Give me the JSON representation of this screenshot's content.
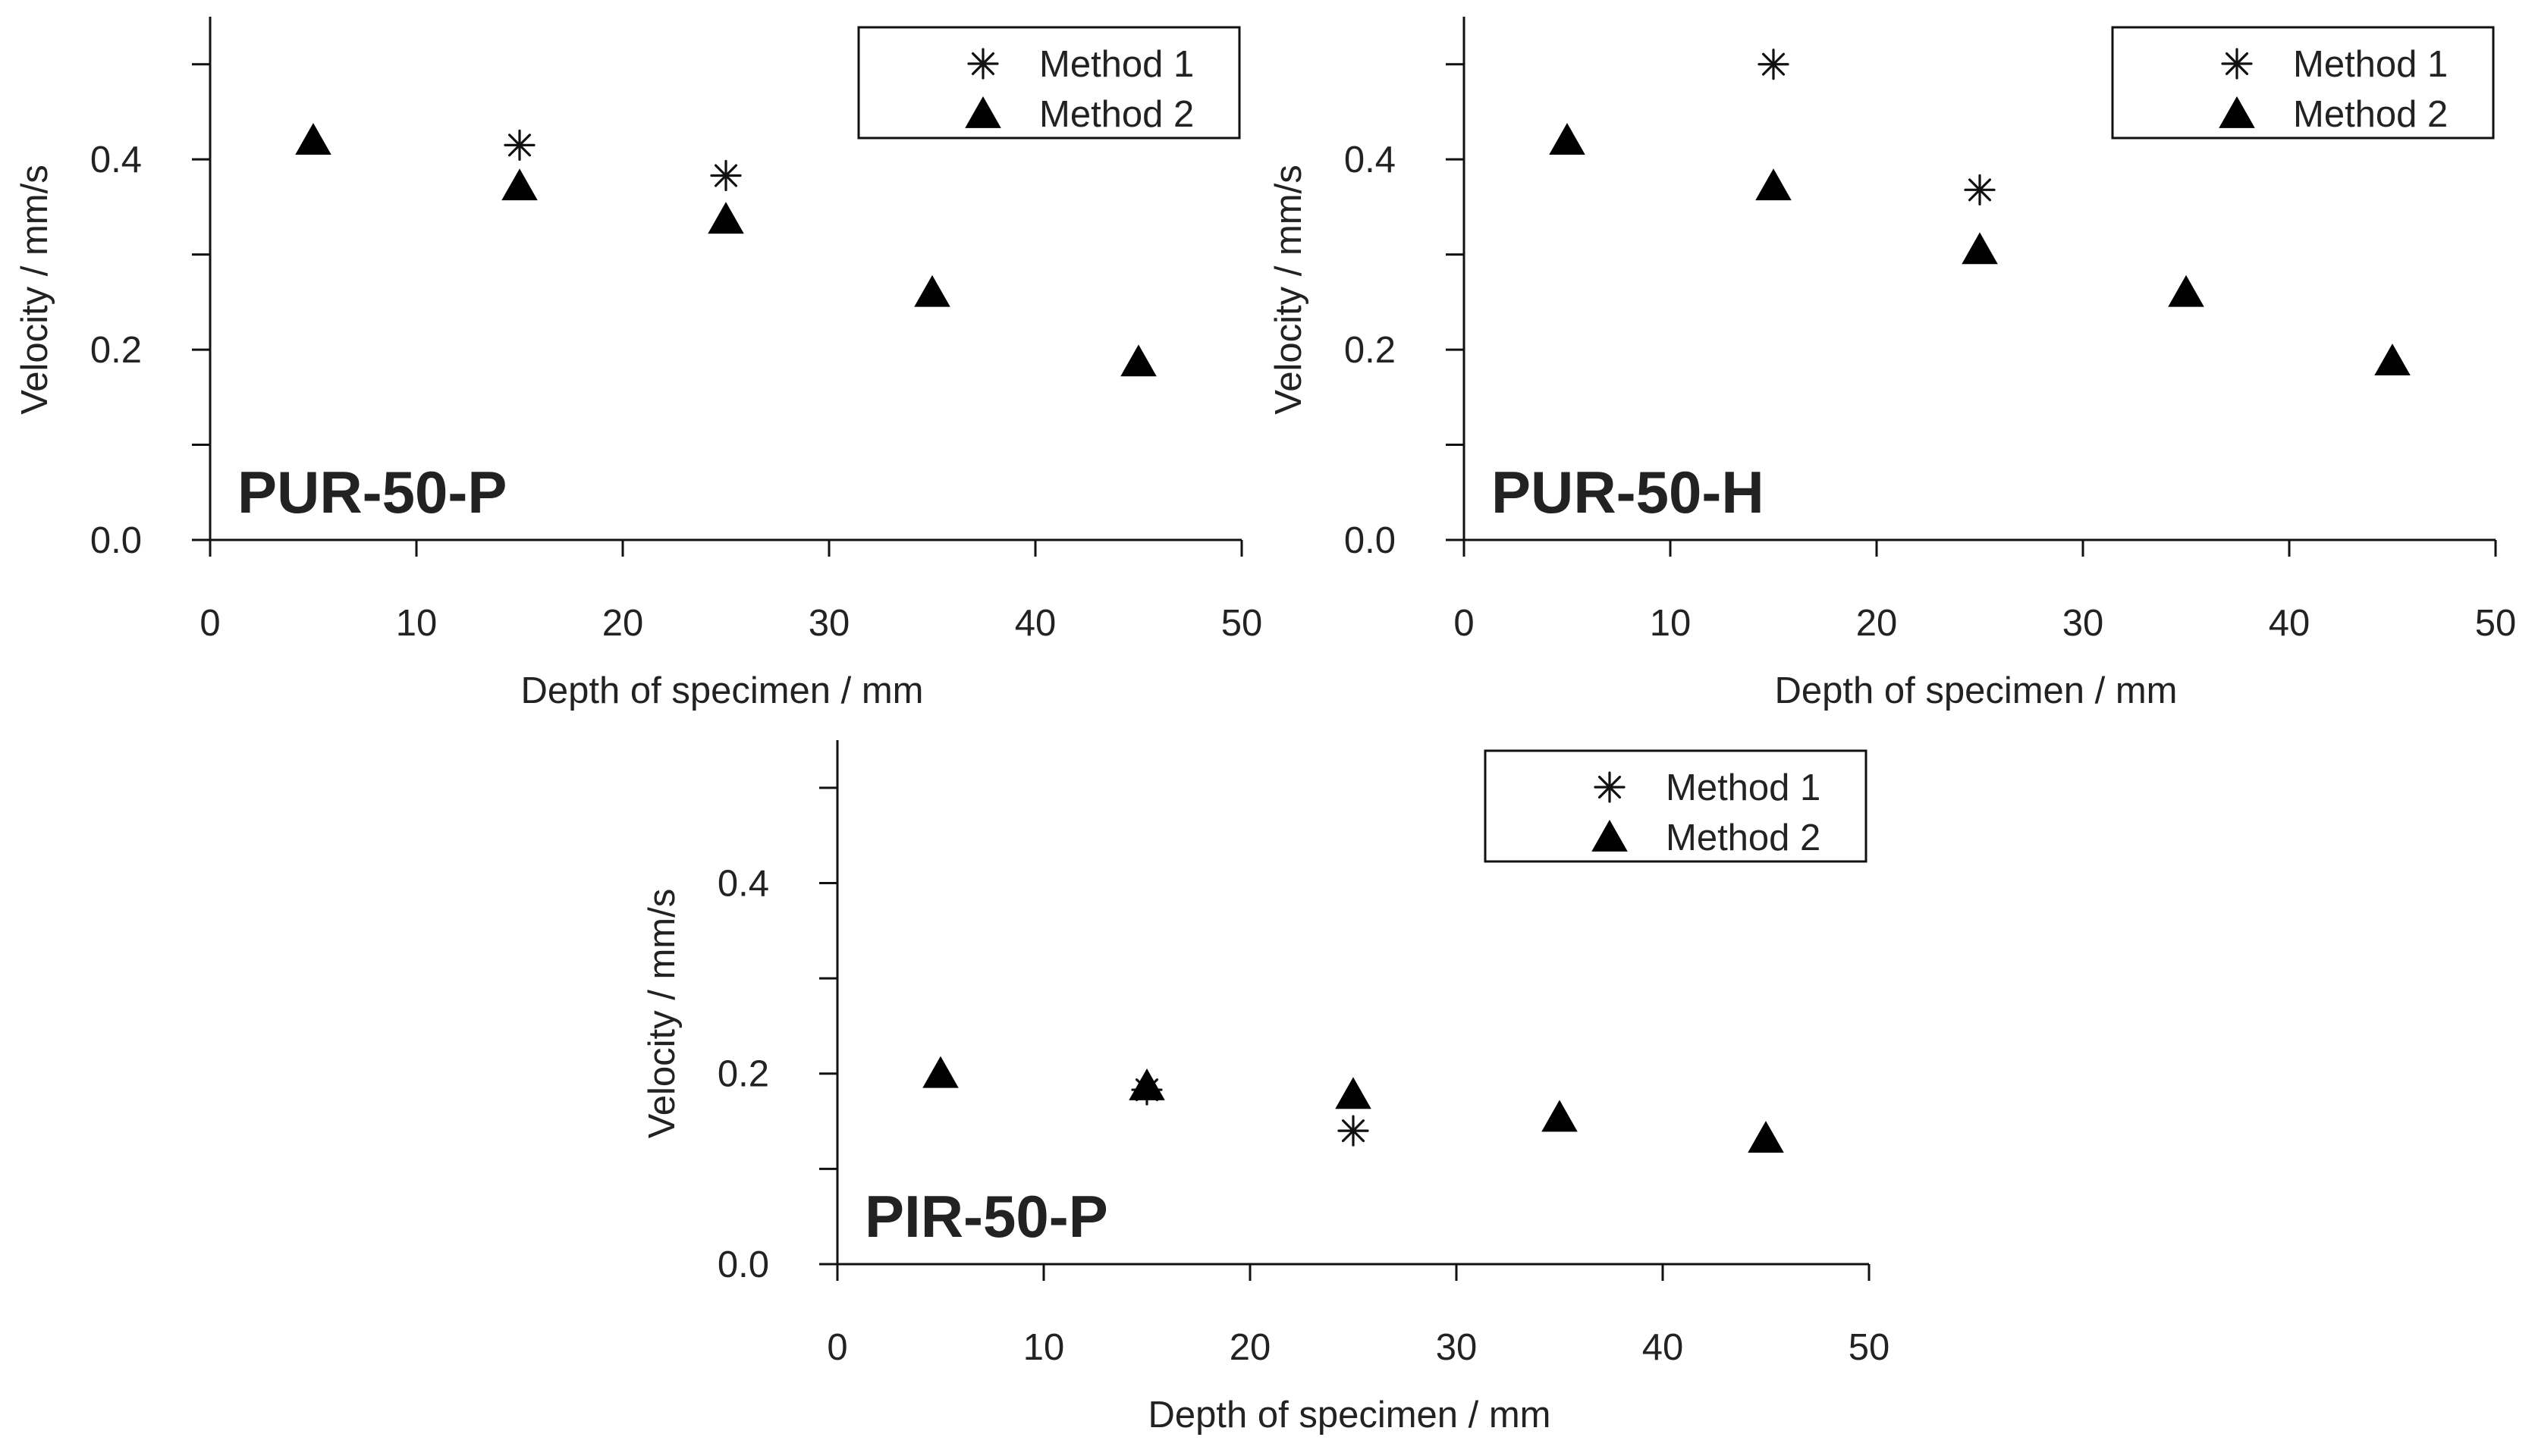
{
  "chart_data": [
    {
      "type": "scatter",
      "title": "",
      "panel_label": "PUR-50-P",
      "xlabel": "Depth of specimen / mm",
      "ylabel": "Velocity / mm/s",
      "xlim": [
        0,
        50
      ],
      "ylim": [
        0,
        0.55
      ],
      "xticks": [
        0,
        10,
        20,
        30,
        40,
        50
      ],
      "xtick_labels": [
        "0",
        "10",
        "20",
        "30",
        "40",
        "50"
      ],
      "yticks": [
        0.0,
        0.2,
        0.4
      ],
      "ytick_labels": [
        "0.0",
        "0.2",
        "0.4"
      ],
      "y_minor_ticks": [
        0.1,
        0.3,
        0.5
      ],
      "grid": false,
      "legend_position": "top-right",
      "series": [
        {
          "name": "Method 1",
          "marker": "asterisk",
          "x": [
            15,
            25
          ],
          "y": [
            0.415,
            0.383
          ]
        },
        {
          "name": "Method 2",
          "marker": "triangle",
          "x": [
            5,
            15,
            25,
            35,
            45
          ],
          "y": [
            0.42,
            0.372,
            0.337,
            0.26,
            0.187
          ]
        }
      ]
    },
    {
      "type": "scatter",
      "title": "",
      "panel_label": "PUR-50-H",
      "xlabel": "Depth of specimen / mm",
      "ylabel": "Velocity / mm/s",
      "xlim": [
        0,
        50
      ],
      "ylim": [
        0,
        0.55
      ],
      "xticks": [
        0,
        10,
        20,
        30,
        40,
        50
      ],
      "xtick_labels": [
        "0",
        "10",
        "20",
        "30",
        "40",
        "50"
      ],
      "yticks": [
        0.0,
        0.2,
        0.4
      ],
      "ytick_labels": [
        "0.0",
        "0.2",
        "0.4"
      ],
      "y_minor_ticks": [
        0.1,
        0.3,
        0.5
      ],
      "grid": false,
      "legend_position": "top-right",
      "series": [
        {
          "name": "Method 1",
          "marker": "asterisk",
          "x": [
            15,
            25
          ],
          "y": [
            0.5,
            0.368
          ]
        },
        {
          "name": "Method 2",
          "marker": "triangle",
          "x": [
            5,
            15,
            25,
            35,
            45
          ],
          "y": [
            0.42,
            0.372,
            0.305,
            0.26,
            0.188
          ]
        }
      ]
    },
    {
      "type": "scatter",
      "title": "",
      "panel_label": "PIR-50-P",
      "xlabel": "Depth of specimen / mm",
      "ylabel": "Velocity / mm/s",
      "xlim": [
        0,
        50
      ],
      "ylim": [
        0,
        0.55
      ],
      "xticks": [
        0,
        10,
        20,
        30,
        40,
        50
      ],
      "xtick_labels": [
        "0",
        "10",
        "20",
        "30",
        "40",
        "50"
      ],
      "yticks": [
        0.0,
        0.2,
        0.4
      ],
      "ytick_labels": [
        "0.0",
        "0.2",
        "0.4"
      ],
      "y_minor_ticks": [
        0.1,
        0.3,
        0.5
      ],
      "grid": false,
      "legend_position": "top-right",
      "series": [
        {
          "name": "Method 1",
          "marker": "asterisk",
          "x": [
            15,
            25
          ],
          "y": [
            0.183,
            0.14
          ]
        },
        {
          "name": "Method 2",
          "marker": "triangle",
          "x": [
            5,
            15,
            25,
            35,
            45
          ],
          "y": [
            0.2,
            0.187,
            0.178,
            0.154,
            0.132
          ]
        }
      ]
    }
  ]
}
